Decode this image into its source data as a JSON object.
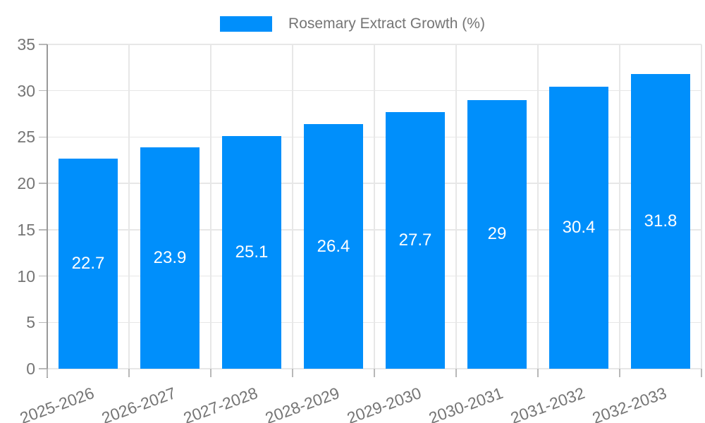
{
  "chart_data": {
    "type": "bar",
    "title": "Rosemary Extract Growth (%)",
    "legend": {
      "label": "Rosemary Extract Growth (%)",
      "position": "top-center"
    },
    "categories": [
      "2025-2026",
      "2026-2027",
      "2027-2028",
      "2028-2029",
      "2029-2030",
      "2030-2031",
      "2031-2032",
      "2032-2033"
    ],
    "values": [
      22.7,
      23.9,
      25.1,
      26.4,
      27.7,
      29,
      30.4,
      31.8
    ],
    "value_labels": [
      "22.7",
      "23.9",
      "25.1",
      "26.4",
      "27.7",
      "29",
      "30.4",
      "31.8"
    ],
    "xlabel": "",
    "ylabel": "",
    "ylim": [
      0,
      35
    ],
    "yticks": [
      0,
      5,
      10,
      15,
      20,
      25,
      30,
      35
    ],
    "ytick_labels": [
      "0",
      "5",
      "10",
      "15",
      "20",
      "25",
      "30",
      "35"
    ],
    "grid": "on",
    "x_label_rotation_deg": -20,
    "colors": {
      "bar": "#008FFB",
      "grid": "#e7e7e7",
      "axis_line": "#999999",
      "tick_mark": "#b8b8b8",
      "tick_text": "#757575",
      "value_text": "#ffffff",
      "background": "#ffffff"
    }
  }
}
